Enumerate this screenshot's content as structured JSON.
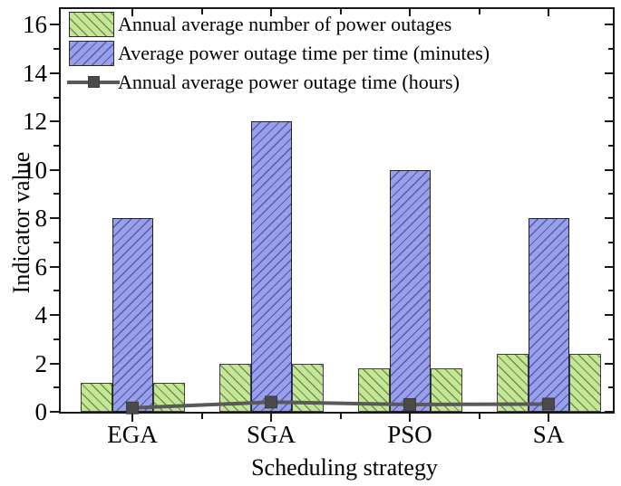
{
  "figure": {
    "background": "#ffffff",
    "axis_color": "#181818",
    "text_color": "#000000"
  },
  "chart_data": {
    "type": "bar",
    "title": "",
    "categories": [
      "EGA",
      "SGA",
      "PSO",
      "SA"
    ],
    "series": [
      {
        "name": "Annual average number of power outages",
        "type": "bar",
        "values": [
          1.2,
          2.0,
          1.8,
          2.4
        ],
        "fill": "#c4e794",
        "hatch": "\\",
        "hatch_color": "rgba(55,60,40,0.55)",
        "border": "#3f3f3f",
        "layout_hint": "drawn as two identical bars flanking the blue bar in each category group"
      },
      {
        "name": "Average power outage time per time (minutes)",
        "type": "bar",
        "values": [
          8,
          12,
          10,
          8
        ],
        "fill": "#98a0ee",
        "hatch": "/",
        "hatch_color": "rgba(30,34,90,0.55)",
        "border": "#20202e"
      },
      {
        "name": "Annual average power outage time (hours)",
        "type": "line",
        "values": [
          0.16,
          0.4,
          0.3,
          0.32
        ],
        "color": "#595959",
        "marker": "square",
        "marker_color": "#4a4a4a"
      }
    ],
    "xlabel": "Scheduling strategy",
    "ylabel": "Indicator value",
    "ylim": [
      0,
      16.8
    ],
    "ytick_step": 2,
    "yminor_step": 1,
    "ytick_labels": [
      "0",
      "2",
      "4",
      "6",
      "8",
      "10",
      "12",
      "14",
      "16"
    ],
    "grid": false,
    "legend_position": "top-left"
  }
}
